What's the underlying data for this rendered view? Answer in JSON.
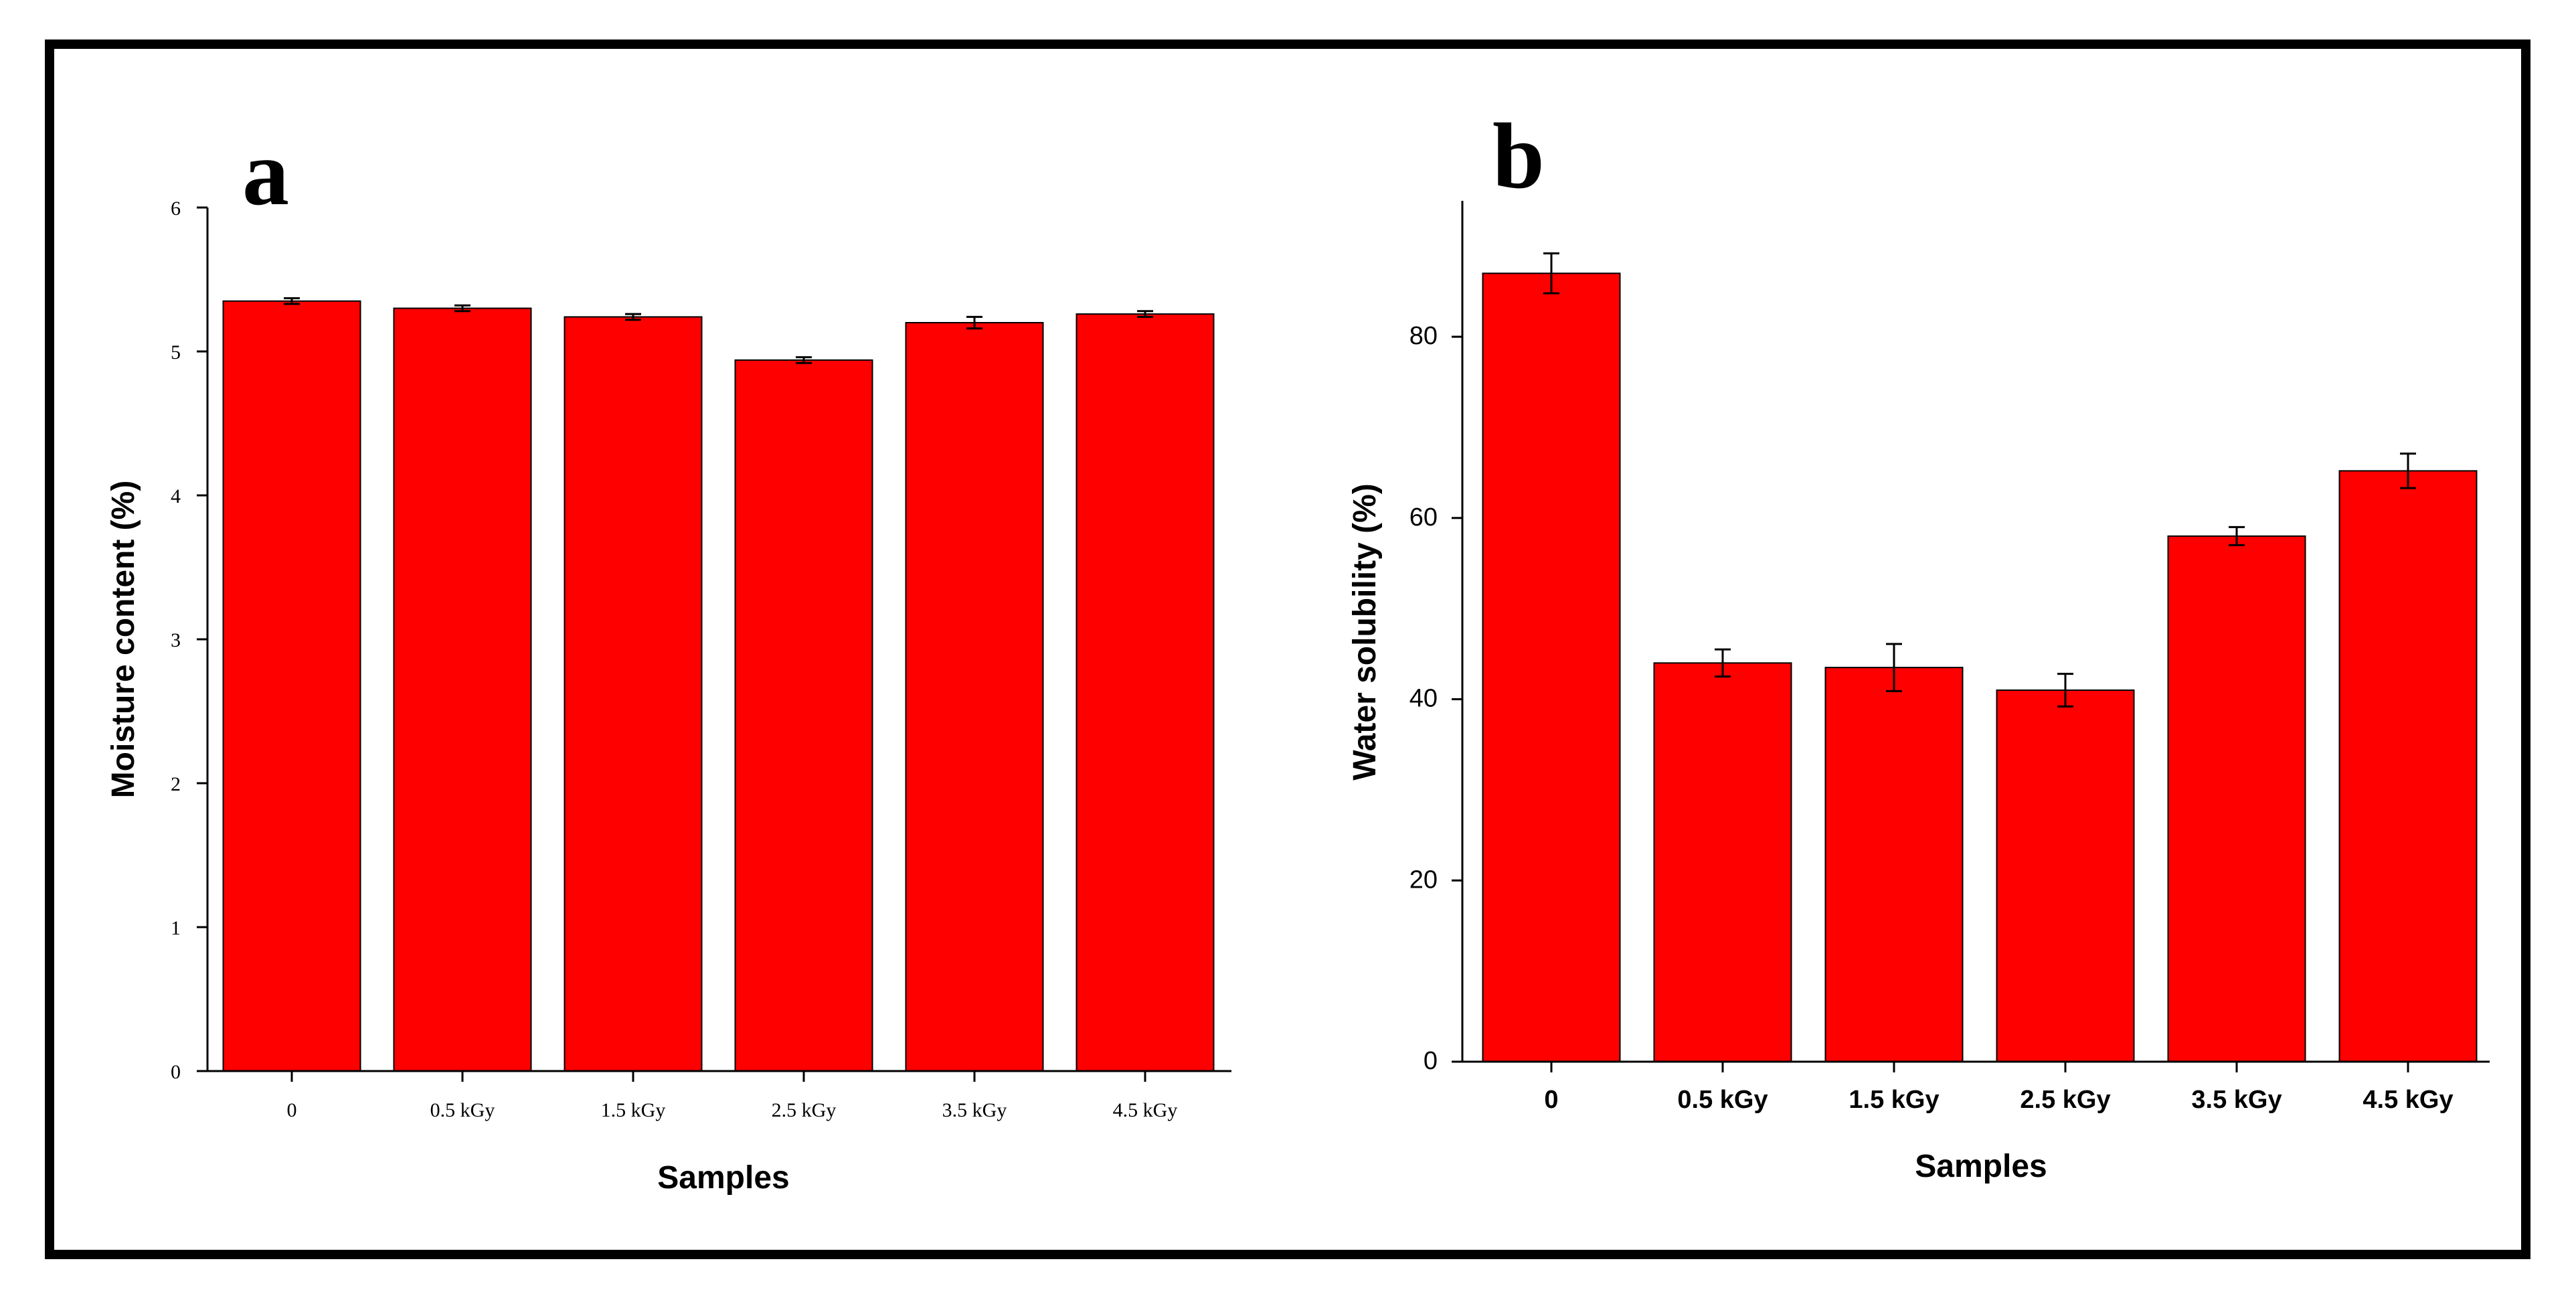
{
  "colors": {
    "bar": "#ff0000",
    "axis": "#000000",
    "background": "#ffffff"
  },
  "chart_data": [
    {
      "panel": "a",
      "type": "bar",
      "categories": [
        "0",
        "0.5 kGy",
        "1.5 kGy",
        "2.5 kGy",
        "3.5 kGy",
        "4.5 kGy"
      ],
      "values": [
        5.35,
        5.3,
        5.24,
        4.94,
        5.2,
        5.26
      ],
      "errors": [
        0.02,
        0.02,
        0.02,
        0.02,
        0.04,
        0.02
      ],
      "xlabel": "Samples",
      "ylabel": "Moisture content (%)",
      "ylim": [
        0,
        6
      ],
      "yticks": [
        "0",
        "1",
        "2",
        "3",
        "4",
        "5",
        "6"
      ],
      "grid": false
    },
    {
      "panel": "b",
      "type": "bar",
      "categories": [
        "0",
        "0.5 kGy",
        "1.5 kGy",
        "2.5 kGy",
        "3.5 kGy",
        "4.5 kGy"
      ],
      "values": [
        87.0,
        44.0,
        43.5,
        41.0,
        58.0,
        65.2
      ],
      "errors": [
        2.2,
        1.5,
        2.6,
        1.8,
        1.0,
        1.9
      ],
      "xlabel": "Samples",
      "ylabel": "Water solubility (%)",
      "ylim": [
        0,
        95
      ],
      "yticks": [
        "0",
        "20",
        "40",
        "60",
        "80"
      ],
      "grid": false
    }
  ]
}
